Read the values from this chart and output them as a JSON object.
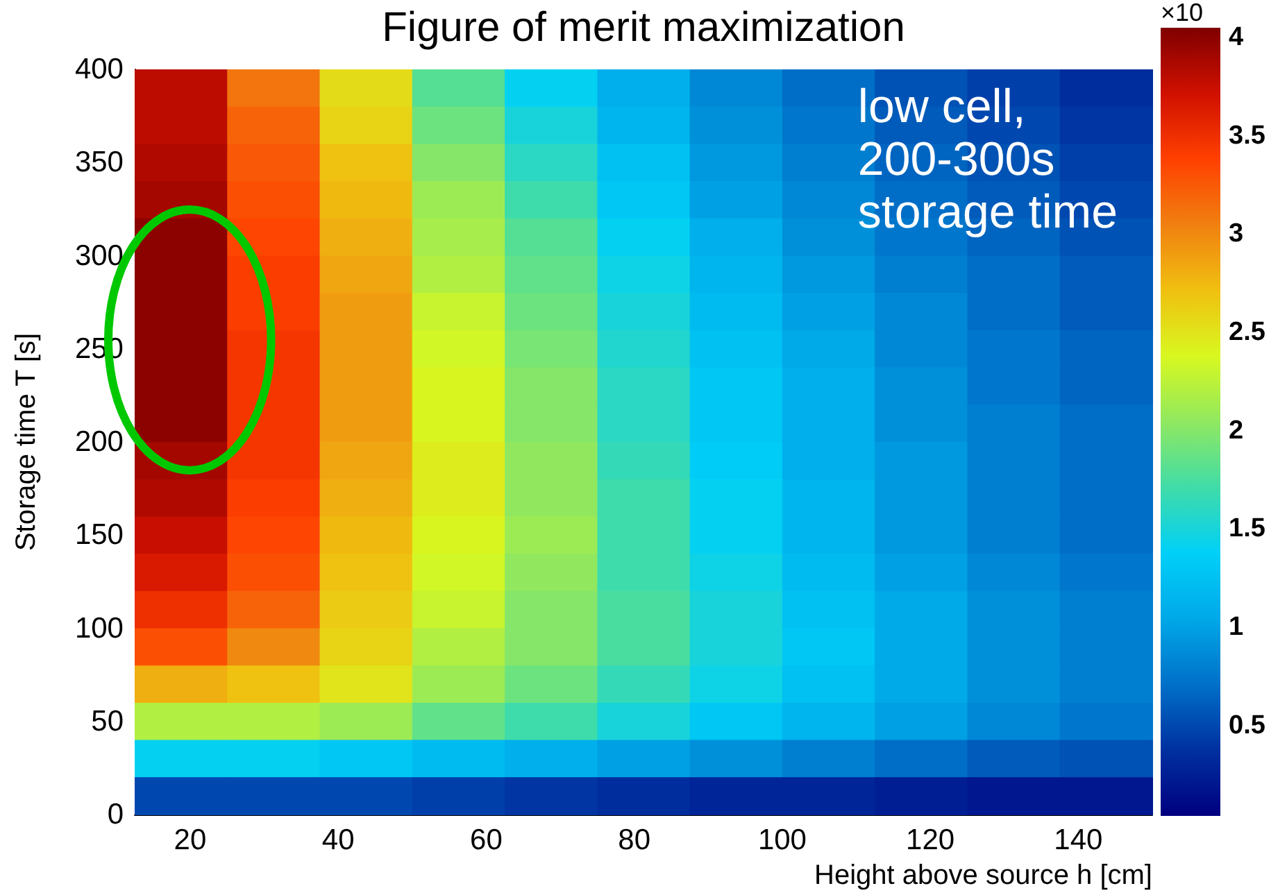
{
  "chart_data": {
    "type": "heatmap",
    "title": "Figure of merit maximization",
    "xlabel": "Height above source h [cm]",
    "ylabel": "Storage time T [s]",
    "clabel": "×10",
    "annotations": [
      "low cell,\n200-300s\nstorage time"
    ],
    "xlim": [
      12.5,
      150
    ],
    "xticks": [
      20,
      40,
      60,
      80,
      100,
      120,
      140
    ],
    "ylim": [
      0,
      400
    ],
    "yticks": [
      0,
      50,
      100,
      150,
      200,
      250,
      300,
      350,
      400
    ],
    "clim": [
      0.04,
      4.05
    ],
    "cticks": [
      0.5,
      1,
      1.5,
      2,
      2.5,
      3,
      3.5,
      4
    ],
    "x": [
      18.75,
      31.25,
      43.75,
      56.25,
      68.75,
      81.25,
      93.75,
      106.25,
      118.75,
      131.25,
      143.75
    ],
    "y": [
      390,
      370,
      350,
      330,
      310,
      290,
      270,
      250,
      230,
      210,
      190,
      170,
      150,
      130,
      110,
      90,
      70,
      50,
      30,
      10
    ],
    "cells": [
      [
        3.8,
        3.1,
        2.55,
        1.8,
        1.4,
        1.1,
        0.85,
        0.7,
        0.55,
        0.45,
        0.35
      ],
      [
        3.8,
        3.2,
        2.6,
        1.9,
        1.5,
        1.15,
        0.9,
        0.75,
        0.6,
        0.5,
        0.4
      ],
      [
        3.85,
        3.25,
        2.7,
        2.0,
        1.6,
        1.25,
        0.95,
        0.8,
        0.65,
        0.55,
        0.45
      ],
      [
        3.9,
        3.3,
        2.75,
        2.1,
        1.7,
        1.3,
        1.0,
        0.85,
        0.7,
        0.6,
        0.5
      ],
      [
        4.0,
        3.35,
        2.8,
        2.15,
        1.8,
        1.4,
        1.1,
        0.9,
        0.75,
        0.65,
        0.55
      ],
      [
        4.0,
        3.4,
        2.85,
        2.2,
        1.85,
        1.45,
        1.15,
        0.95,
        0.8,
        0.7,
        0.6
      ],
      [
        4.0,
        3.4,
        2.9,
        2.3,
        1.9,
        1.5,
        1.2,
        1.0,
        0.85,
        0.7,
        0.6
      ],
      [
        4.0,
        3.45,
        2.9,
        2.35,
        1.95,
        1.55,
        1.25,
        1.05,
        0.85,
        0.75,
        0.65
      ],
      [
        4.0,
        3.45,
        2.9,
        2.4,
        2.0,
        1.6,
        1.3,
        1.1,
        0.9,
        0.75,
        0.65
      ],
      [
        4.0,
        3.45,
        2.9,
        2.4,
        2.0,
        1.6,
        1.3,
        1.1,
        0.9,
        0.8,
        0.7
      ],
      [
        3.9,
        3.45,
        2.85,
        2.45,
        2.05,
        1.65,
        1.35,
        1.1,
        0.95,
        0.8,
        0.7
      ],
      [
        3.85,
        3.4,
        2.8,
        2.45,
        2.05,
        1.7,
        1.4,
        1.15,
        0.95,
        0.8,
        0.7
      ],
      [
        3.75,
        3.35,
        2.75,
        2.4,
        2.1,
        1.7,
        1.4,
        1.15,
        0.95,
        0.8,
        0.7
      ],
      [
        3.65,
        3.3,
        2.7,
        2.35,
        2.05,
        1.7,
        1.45,
        1.2,
        1.0,
        0.85,
        0.75
      ],
      [
        3.5,
        3.2,
        2.65,
        2.3,
        2.0,
        1.75,
        1.5,
        1.25,
        1.05,
        0.9,
        0.8
      ],
      [
        3.3,
        3.0,
        2.6,
        2.2,
        2.0,
        1.75,
        1.5,
        1.3,
        1.05,
        0.9,
        0.8
      ],
      [
        2.8,
        2.7,
        2.5,
        2.1,
        1.9,
        1.65,
        1.45,
        1.25,
        1.05,
        0.9,
        0.8
      ],
      [
        2.2,
        2.2,
        2.1,
        1.85,
        1.7,
        1.5,
        1.3,
        1.15,
        1.0,
        0.85,
        0.75
      ],
      [
        1.4,
        1.4,
        1.3,
        1.2,
        1.1,
        1.0,
        0.9,
        0.8,
        0.7,
        0.6,
        0.55
      ],
      [
        0.5,
        0.5,
        0.5,
        0.45,
        0.4,
        0.35,
        0.3,
        0.3,
        0.25,
        0.2,
        0.2
      ]
    ]
  }
}
